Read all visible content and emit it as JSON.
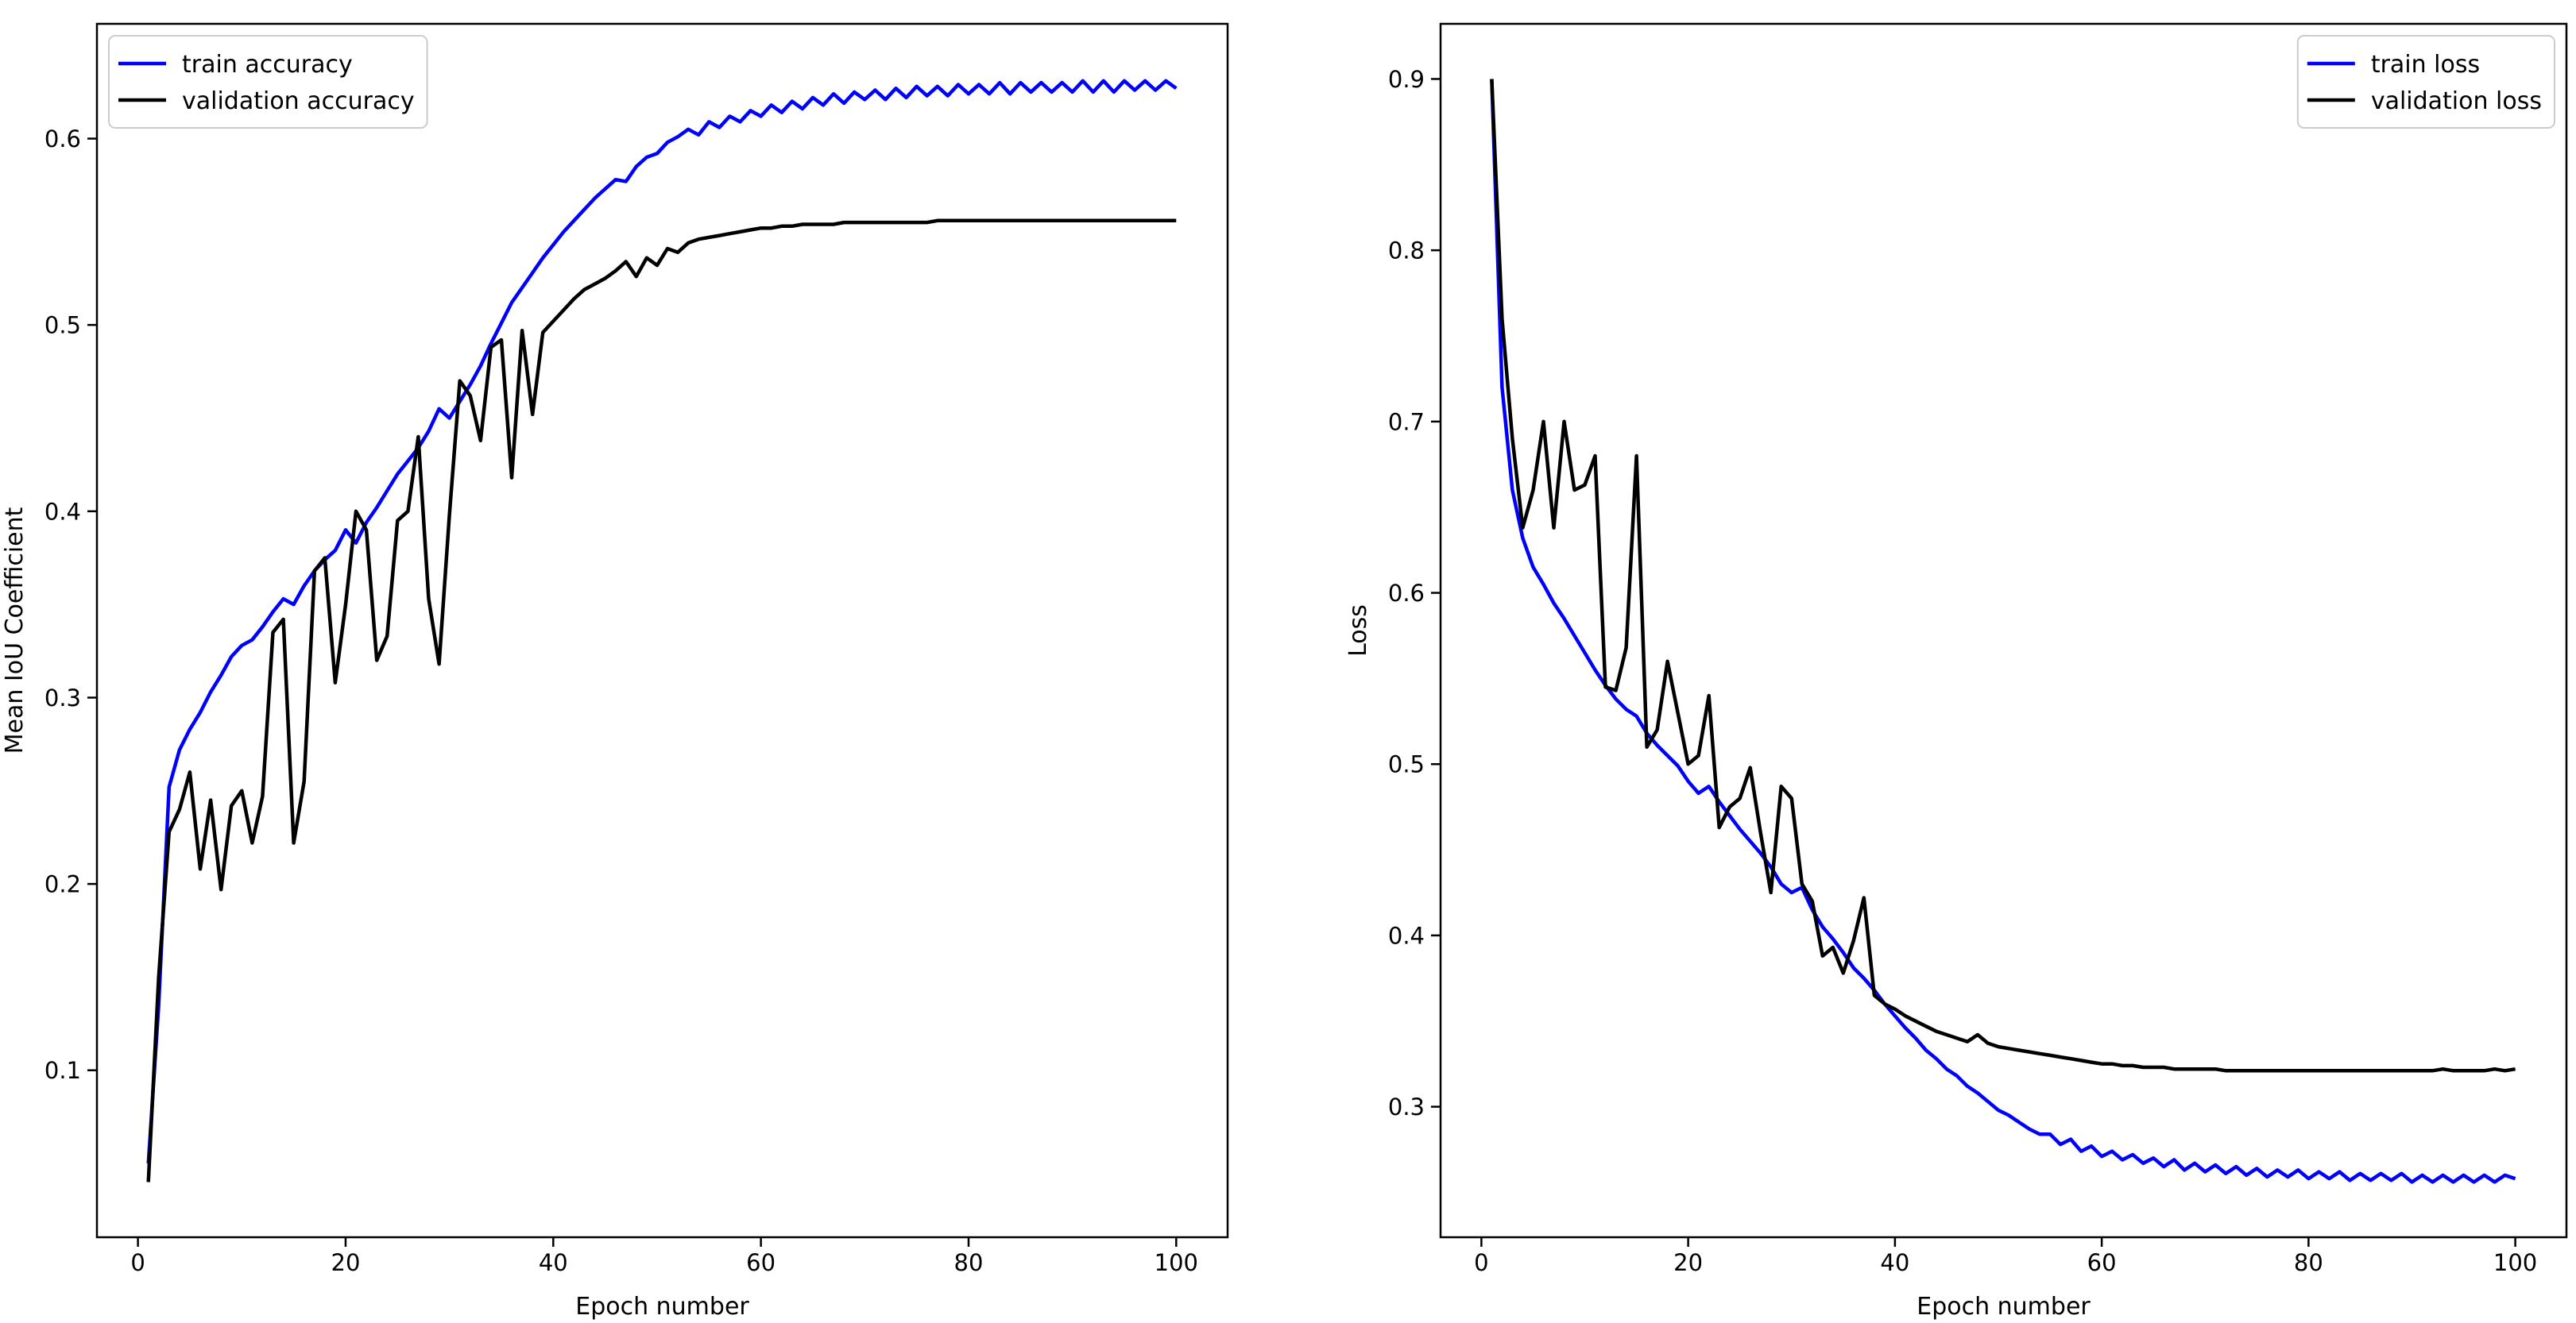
{
  "figure": {
    "background": "#ffffff",
    "accent_blue": "#0000ff",
    "accent_black": "#000000",
    "legend_edge_color": "#cccccc"
  },
  "chart_data": [
    {
      "type": "line",
      "title": "",
      "xlabel": "Epoch number",
      "ylabel": "Mean IoU Coefficient",
      "grid": false,
      "xlim": [
        -3.95,
        104.95
      ],
      "ylim": [
        0.0104,
        0.6616
      ],
      "x_ticks": [
        0,
        20,
        40,
        60,
        80,
        100
      ],
      "x_tick_labels": [
        "0",
        "20",
        "40",
        "60",
        "80",
        "100"
      ],
      "y_ticks": [
        0.1,
        0.2,
        0.3,
        0.4,
        0.5,
        0.6
      ],
      "y_tick_labels": [
        "0.1",
        "0.2",
        "0.3",
        "0.4",
        "0.5",
        "0.6"
      ],
      "legend": {
        "position": "upper left"
      },
      "x_start": 1,
      "series": [
        {
          "name": "train accuracy",
          "color": "#0000ff",
          "values": [
            0.05,
            0.135,
            0.252,
            0.272,
            0.283,
            0.292,
            0.303,
            0.312,
            0.322,
            0.328,
            0.331,
            0.338,
            0.346,
            0.353,
            0.35,
            0.36,
            0.368,
            0.374,
            0.379,
            0.39,
            0.383,
            0.394,
            0.402,
            0.411,
            0.42,
            0.427,
            0.434,
            0.443,
            0.455,
            0.45,
            0.459,
            0.468,
            0.478,
            0.49,
            0.501,
            0.512,
            0.52,
            0.528,
            0.536,
            0.543,
            0.55,
            0.556,
            0.562,
            0.568,
            0.573,
            0.578,
            0.577,
            0.585,
            0.59,
            0.592,
            0.598,
            0.601,
            0.605,
            0.602,
            0.609,
            0.606,
            0.612,
            0.609,
            0.615,
            0.612,
            0.618,
            0.614,
            0.62,
            0.616,
            0.622,
            0.618,
            0.624,
            0.619,
            0.625,
            0.621,
            0.626,
            0.621,
            0.627,
            0.622,
            0.628,
            0.623,
            0.628,
            0.623,
            0.629,
            0.624,
            0.629,
            0.624,
            0.63,
            0.624,
            0.63,
            0.625,
            0.63,
            0.625,
            0.63,
            0.625,
            0.631,
            0.625,
            0.631,
            0.625,
            0.631,
            0.626,
            0.631,
            0.626,
            0.631,
            0.627
          ]
        },
        {
          "name": "validation accuracy",
          "color": "#000000",
          "values": [
            0.04,
            0.15,
            0.228,
            0.24,
            0.26,
            0.208,
            0.245,
            0.197,
            0.242,
            0.25,
            0.222,
            0.247,
            0.335,
            0.342,
            0.222,
            0.255,
            0.368,
            0.375,
            0.308,
            0.35,
            0.4,
            0.39,
            0.32,
            0.333,
            0.395,
            0.4,
            0.44,
            0.353,
            0.318,
            0.398,
            0.47,
            0.462,
            0.438,
            0.488,
            0.492,
            0.418,
            0.497,
            0.452,
            0.496,
            0.502,
            0.508,
            0.514,
            0.519,
            0.522,
            0.525,
            0.529,
            0.534,
            0.526,
            0.536,
            0.532,
            0.541,
            0.539,
            0.544,
            0.546,
            0.547,
            0.548,
            0.549,
            0.55,
            0.551,
            0.552,
            0.552,
            0.553,
            0.553,
            0.554,
            0.554,
            0.554,
            0.554,
            0.555,
            0.555,
            0.555,
            0.555,
            0.555,
            0.555,
            0.555,
            0.555,
            0.555,
            0.556,
            0.556,
            0.556,
            0.556,
            0.556,
            0.556,
            0.556,
            0.556,
            0.556,
            0.556,
            0.556,
            0.556,
            0.556,
            0.556,
            0.556,
            0.556,
            0.556,
            0.556,
            0.556,
            0.556,
            0.556,
            0.556,
            0.556,
            0.556
          ]
        }
      ]
    },
    {
      "type": "line",
      "title": "",
      "xlabel": "Epoch number",
      "ylabel": "Loss",
      "grid": false,
      "xlim": [
        -3.95,
        104.95
      ],
      "ylim": [
        0.2238,
        0.9322
      ],
      "x_ticks": [
        0,
        20,
        40,
        60,
        80,
        100
      ],
      "x_tick_labels": [
        "0",
        "20",
        "40",
        "60",
        "80",
        "100"
      ],
      "y_ticks": [
        0.3,
        0.4,
        0.5,
        0.6,
        0.7,
        0.8,
        0.9
      ],
      "y_tick_labels": [
        "0.3",
        "0.4",
        "0.5",
        "0.6",
        "0.7",
        "0.8",
        "0.9"
      ],
      "legend": {
        "position": "upper right"
      },
      "x_start": 1,
      "series": [
        {
          "name": "train loss",
          "color": "#0000ff",
          "values": [
            0.9,
            0.72,
            0.66,
            0.632,
            0.615,
            0.605,
            0.594,
            0.585,
            0.575,
            0.565,
            0.555,
            0.546,
            0.538,
            0.532,
            0.528,
            0.518,
            0.511,
            0.505,
            0.499,
            0.49,
            0.483,
            0.487,
            0.478,
            0.47,
            0.462,
            0.455,
            0.448,
            0.44,
            0.43,
            0.425,
            0.428,
            0.415,
            0.405,
            0.398,
            0.39,
            0.381,
            0.375,
            0.368,
            0.36,
            0.353,
            0.346,
            0.34,
            0.333,
            0.328,
            0.322,
            0.318,
            0.312,
            0.308,
            0.303,
            0.298,
            0.295,
            0.291,
            0.287,
            0.284,
            0.284,
            0.278,
            0.281,
            0.274,
            0.277,
            0.271,
            0.274,
            0.269,
            0.272,
            0.267,
            0.27,
            0.265,
            0.269,
            0.263,
            0.267,
            0.262,
            0.266,
            0.261,
            0.265,
            0.26,
            0.264,
            0.259,
            0.263,
            0.259,
            0.263,
            0.258,
            0.262,
            0.258,
            0.262,
            0.257,
            0.261,
            0.257,
            0.261,
            0.257,
            0.261,
            0.256,
            0.26,
            0.256,
            0.26,
            0.256,
            0.26,
            0.256,
            0.26,
            0.256,
            0.26,
            0.258
          ]
        },
        {
          "name": "validation loss",
          "color": "#000000",
          "values": [
            0.9,
            0.76,
            0.69,
            0.638,
            0.66,
            0.7,
            0.638,
            0.7,
            0.66,
            0.663,
            0.68,
            0.545,
            0.543,
            0.568,
            0.68,
            0.51,
            0.52,
            0.56,
            0.53,
            0.5,
            0.505,
            0.54,
            0.463,
            0.475,
            0.48,
            0.498,
            0.46,
            0.425,
            0.487,
            0.48,
            0.43,
            0.42,
            0.388,
            0.393,
            0.378,
            0.397,
            0.422,
            0.365,
            0.36,
            0.357,
            0.353,
            0.35,
            0.347,
            0.344,
            0.342,
            0.34,
            0.338,
            0.342,
            0.337,
            0.335,
            0.334,
            0.333,
            0.332,
            0.331,
            0.33,
            0.329,
            0.328,
            0.327,
            0.326,
            0.325,
            0.325,
            0.324,
            0.324,
            0.323,
            0.323,
            0.323,
            0.322,
            0.322,
            0.322,
            0.322,
            0.322,
            0.321,
            0.321,
            0.321,
            0.321,
            0.321,
            0.321,
            0.321,
            0.321,
            0.321,
            0.321,
            0.321,
            0.321,
            0.321,
            0.321,
            0.321,
            0.321,
            0.321,
            0.321,
            0.321,
            0.321,
            0.321,
            0.322,
            0.321,
            0.321,
            0.321,
            0.321,
            0.322,
            0.321,
            0.322
          ]
        }
      ]
    }
  ]
}
